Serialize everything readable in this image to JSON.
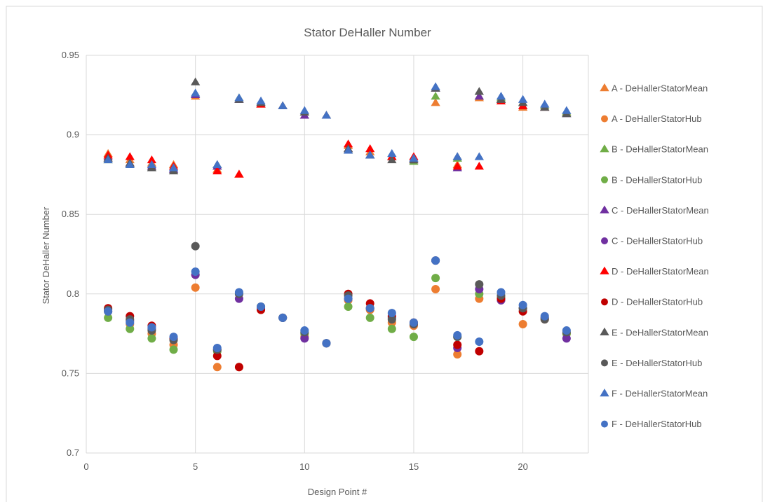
{
  "chart_data": {
    "type": "scatter",
    "title": "Stator DeHaller Number",
    "xlabel": "Design Point #",
    "ylabel": "Stator DeHaller Number",
    "xlim": [
      0,
      23
    ],
    "ylim": [
      0.7,
      0.95
    ],
    "x_ticks": [
      "0",
      "5",
      "10",
      "15",
      "20"
    ],
    "x_tick_values": [
      0,
      5,
      10,
      15,
      20
    ],
    "y_ticks": [
      "0.7",
      "0.75",
      "0.8",
      "0.85",
      "0.9",
      "0.95"
    ],
    "y_tick_values": [
      0.7,
      0.75,
      0.8,
      0.85,
      0.9,
      0.95
    ],
    "grid": true,
    "legend_position": "right",
    "series": [
      {
        "name": "A - DeHallerStatorMean",
        "marker": "triangle",
        "color": "#ED7D31",
        "points": [
          [
            1,
            0.888
          ],
          [
            2,
            0.884
          ],
          [
            3,
            0.882
          ],
          [
            4,
            0.881
          ],
          [
            5,
            0.924
          ],
          [
            6,
            0.878
          ],
          [
            7,
            0.875
          ],
          [
            8,
            0.919
          ],
          [
            9,
            0.918
          ],
          [
            10,
            0.914
          ],
          [
            11,
            0.912
          ],
          [
            12,
            0.893
          ],
          [
            13,
            0.889
          ],
          [
            14,
            0.886
          ],
          [
            15,
            0.884
          ],
          [
            16,
            0.92
          ],
          [
            17,
            0.881
          ],
          [
            18,
            0.923
          ],
          [
            19,
            0.922
          ],
          [
            20,
            0.917
          ],
          [
            21,
            0.917
          ],
          [
            22,
            0.914
          ]
        ]
      },
      {
        "name": "A - DeHallerStatorHub",
        "marker": "circle",
        "color": "#ED7D31",
        "points": [
          [
            1,
            0.789
          ],
          [
            2,
            0.781
          ],
          [
            3,
            0.775
          ],
          [
            4,
            0.768
          ],
          [
            5,
            0.804
          ],
          [
            6,
            0.754
          ],
          [
            7,
            0.754
          ],
          [
            8,
            0.79
          ],
          [
            9,
            0.785
          ],
          [
            10,
            0.773
          ],
          [
            11,
            0.769
          ],
          [
            12,
            0.796
          ],
          [
            13,
            0.79
          ],
          [
            14,
            0.782
          ],
          [
            15,
            0.78
          ],
          [
            16,
            0.803
          ],
          [
            17,
            0.762
          ],
          [
            18,
            0.797
          ],
          [
            19,
            0.796
          ],
          [
            20,
            0.781
          ],
          [
            21,
            0.784
          ],
          [
            22,
            0.775
          ]
        ]
      },
      {
        "name": "B - DeHallerStatorMean",
        "marker": "triangle",
        "color": "#70AD47",
        "points": [
          [
            1,
            0.884
          ],
          [
            2,
            0.881
          ],
          [
            3,
            0.88
          ],
          [
            4,
            0.877
          ],
          [
            5,
            0.925
          ],
          [
            6,
            0.88
          ],
          [
            7,
            0.923
          ],
          [
            8,
            0.92
          ],
          [
            9,
            0.918
          ],
          [
            10,
            0.914
          ],
          [
            11,
            0.912
          ],
          [
            12,
            0.89
          ],
          [
            13,
            0.887
          ],
          [
            14,
            0.886
          ],
          [
            15,
            0.883
          ],
          [
            16,
            0.924
          ],
          [
            17,
            0.885
          ],
          [
            18,
            0.924
          ],
          [
            19,
            0.923
          ],
          [
            20,
            0.92
          ],
          [
            21,
            0.918
          ],
          [
            22,
            0.914
          ]
        ]
      },
      {
        "name": "B - DeHallerStatorHub",
        "marker": "circle",
        "color": "#70AD47",
        "points": [
          [
            1,
            0.785
          ],
          [
            2,
            0.778
          ],
          [
            3,
            0.772
          ],
          [
            4,
            0.765
          ],
          [
            5,
            0.812
          ],
          [
            6,
            0.764
          ],
          [
            7,
            0.8
          ],
          [
            8,
            0.792
          ],
          [
            9,
            0.785
          ],
          [
            10,
            0.775
          ],
          [
            11,
            0.769
          ],
          [
            12,
            0.792
          ],
          [
            13,
            0.785
          ],
          [
            14,
            0.778
          ],
          [
            15,
            0.773
          ],
          [
            16,
            0.81
          ],
          [
            17,
            0.773
          ],
          [
            18,
            0.8
          ],
          [
            19,
            0.798
          ],
          [
            20,
            0.791
          ],
          [
            21,
            0.785
          ],
          [
            22,
            0.775
          ]
        ]
      },
      {
        "name": "C - DeHallerStatorMean",
        "marker": "triangle",
        "color": "#7030A0",
        "points": [
          [
            1,
            0.886
          ],
          [
            2,
            0.882
          ],
          [
            3,
            0.88
          ],
          [
            4,
            0.878
          ],
          [
            5,
            0.925
          ],
          [
            6,
            0.88
          ],
          [
            7,
            0.922
          ],
          [
            8,
            0.92
          ],
          [
            9,
            0.918
          ],
          [
            10,
            0.912
          ],
          [
            11,
            0.912
          ],
          [
            12,
            0.891
          ],
          [
            13,
            0.887
          ],
          [
            14,
            0.886
          ],
          [
            15,
            0.884
          ],
          [
            16,
            0.929
          ],
          [
            17,
            0.879
          ],
          [
            18,
            0.924
          ],
          [
            19,
            0.922
          ],
          [
            20,
            0.918
          ],
          [
            21,
            0.917
          ],
          [
            22,
            0.913
          ]
        ]
      },
      {
        "name": "C - DeHallerStatorHub",
        "marker": "circle",
        "color": "#7030A0",
        "points": [
          [
            1,
            0.789
          ],
          [
            2,
            0.783
          ],
          [
            3,
            0.778
          ],
          [
            4,
            0.772
          ],
          [
            5,
            0.812
          ],
          [
            6,
            0.765
          ],
          [
            7,
            0.797
          ],
          [
            8,
            0.791
          ],
          [
            9,
            0.785
          ],
          [
            10,
            0.772
          ],
          [
            11,
            0.769
          ],
          [
            12,
            0.797
          ],
          [
            13,
            0.791
          ],
          [
            14,
            0.785
          ],
          [
            15,
            0.781
          ],
          [
            16,
            0.821
          ],
          [
            17,
            0.766
          ],
          [
            18,
            0.803
          ],
          [
            19,
            0.796
          ],
          [
            20,
            0.791
          ],
          [
            21,
            0.785
          ],
          [
            22,
            0.772
          ]
        ]
      },
      {
        "name": "D - DeHallerStatorMean",
        "marker": "triangle",
        "color": "#FF0000",
        "points": [
          [
            1,
            0.887
          ],
          [
            2,
            0.886
          ],
          [
            3,
            0.884
          ],
          [
            4,
            0.88
          ],
          [
            6,
            0.877
          ],
          [
            7,
            0.875
          ],
          [
            8,
            0.919
          ],
          [
            12,
            0.894
          ],
          [
            13,
            0.891
          ],
          [
            14,
            0.886
          ],
          [
            15,
            0.886
          ],
          [
            17,
            0.88
          ],
          [
            18,
            0.88
          ],
          [
            19,
            0.921
          ],
          [
            20,
            0.918
          ]
        ]
      },
      {
        "name": "D - DeHallerStatorHub",
        "marker": "circle",
        "color": "#C00000",
        "points": [
          [
            1,
            0.791
          ],
          [
            2,
            0.786
          ],
          [
            3,
            0.78
          ],
          [
            4,
            0.772
          ],
          [
            6,
            0.761
          ],
          [
            7,
            0.754
          ],
          [
            8,
            0.79
          ],
          [
            12,
            0.8
          ],
          [
            13,
            0.794
          ],
          [
            14,
            0.786
          ],
          [
            15,
            0.782
          ],
          [
            17,
            0.768
          ],
          [
            18,
            0.764
          ],
          [
            19,
            0.797
          ],
          [
            20,
            0.789
          ]
        ]
      },
      {
        "name": "E - DeHallerStatorMean",
        "marker": "triangle",
        "color": "#595959",
        "points": [
          [
            1,
            0.885
          ],
          [
            2,
            0.882
          ],
          [
            3,
            0.879
          ],
          [
            4,
            0.877
          ],
          [
            5,
            0.933
          ],
          [
            6,
            0.881
          ],
          [
            7,
            0.922
          ],
          [
            8,
            0.92
          ],
          [
            9,
            0.918
          ],
          [
            10,
            0.914
          ],
          [
            11,
            0.912
          ],
          [
            12,
            0.891
          ],
          [
            13,
            0.887
          ],
          [
            14,
            0.884
          ],
          [
            15,
            0.884
          ],
          [
            16,
            0.929
          ],
          [
            17,
            0.886
          ],
          [
            18,
            0.927
          ],
          [
            19,
            0.922
          ],
          [
            20,
            0.92
          ],
          [
            21,
            0.917
          ],
          [
            22,
            0.913
          ]
        ]
      },
      {
        "name": "E - DeHallerStatorHub",
        "marker": "circle",
        "color": "#595959",
        "points": [
          [
            1,
            0.79
          ],
          [
            2,
            0.784
          ],
          [
            3,
            0.777
          ],
          [
            4,
            0.771
          ],
          [
            5,
            0.83
          ],
          [
            6,
            0.765
          ],
          [
            7,
            0.8
          ],
          [
            8,
            0.792
          ],
          [
            9,
            0.785
          ],
          [
            10,
            0.776
          ],
          [
            11,
            0.769
          ],
          [
            12,
            0.799
          ],
          [
            13,
            0.791
          ],
          [
            14,
            0.784
          ],
          [
            15,
            0.781
          ],
          [
            16,
            0.821
          ],
          [
            17,
            0.773
          ],
          [
            18,
            0.806
          ],
          [
            19,
            0.799
          ],
          [
            20,
            0.791
          ],
          [
            21,
            0.784
          ],
          [
            22,
            0.776
          ]
        ]
      },
      {
        "name": "F - DeHallerStatorMean",
        "marker": "triangle",
        "color": "#4472C4",
        "points": [
          [
            1,
            0.884
          ],
          [
            2,
            0.881
          ],
          [
            3,
            0.881
          ],
          [
            4,
            0.879
          ],
          [
            5,
            0.926
          ],
          [
            6,
            0.881
          ],
          [
            7,
            0.923
          ],
          [
            8,
            0.921
          ],
          [
            9,
            0.918
          ],
          [
            10,
            0.915
          ],
          [
            11,
            0.912
          ],
          [
            12,
            0.89
          ],
          [
            13,
            0.887
          ],
          [
            14,
            0.888
          ],
          [
            15,
            0.885
          ],
          [
            16,
            0.93
          ],
          [
            17,
            0.886
          ],
          [
            18,
            0.886
          ],
          [
            19,
            0.924
          ],
          [
            20,
            0.922
          ],
          [
            21,
            0.919
          ],
          [
            22,
            0.915
          ]
        ]
      },
      {
        "name": "F - DeHallerStatorHub",
        "marker": "circle",
        "color": "#4472C4",
        "points": [
          [
            1,
            0.789
          ],
          [
            2,
            0.782
          ],
          [
            3,
            0.779
          ],
          [
            4,
            0.773
          ],
          [
            5,
            0.814
          ],
          [
            6,
            0.766
          ],
          [
            7,
            0.801
          ],
          [
            8,
            0.792
          ],
          [
            9,
            0.785
          ],
          [
            10,
            0.777
          ],
          [
            11,
            0.769
          ],
          [
            12,
            0.797
          ],
          [
            13,
            0.791
          ],
          [
            14,
            0.788
          ],
          [
            15,
            0.782
          ],
          [
            16,
            0.821
          ],
          [
            17,
            0.774
          ],
          [
            18,
            0.77
          ],
          [
            19,
            0.801
          ],
          [
            20,
            0.793
          ],
          [
            21,
            0.786
          ],
          [
            22,
            0.777
          ]
        ]
      }
    ]
  }
}
